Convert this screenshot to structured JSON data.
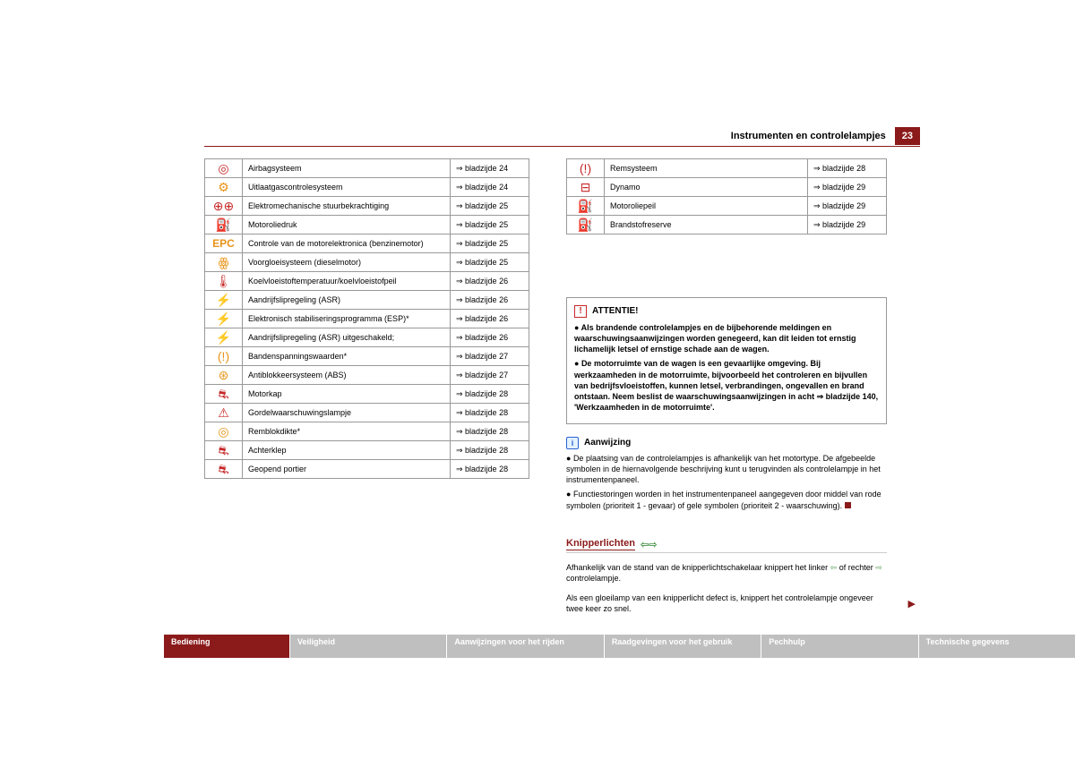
{
  "header": {
    "title": "Instrumenten en controlelampjes",
    "page": "23"
  },
  "leftTable": {
    "rows": [
      {
        "icon": "◎",
        "color": "red",
        "desc": "Airbagsysteem",
        "page": "⇒ bladzijde 24"
      },
      {
        "icon": "⚙",
        "color": "orange",
        "desc": "Uitlaatgascontrolesysteem",
        "page": "⇒ bladzijde 24"
      },
      {
        "icon": "⊕⊕",
        "color": "red",
        "desc": "Elektromechanische stuurbekrachtiging",
        "page": "⇒ bladzijde 25"
      },
      {
        "icon": "⛽",
        "color": "red",
        "desc": "Motoroliedruk",
        "page": "⇒ bladzijde 25"
      },
      {
        "icon": "EPC",
        "color": "orange",
        "epc": true,
        "desc": "Controle van de motorelektronica (benzinemotor)",
        "page": "⇒ bladzijde 25"
      },
      {
        "icon": "ꙮ",
        "color": "orange",
        "desc": "Voorgloeisysteem (dieselmotor)",
        "page": "⇒ bladzijde 25"
      },
      {
        "icon": "🌡",
        "color": "red",
        "desc": "Koelvloeistoftemperatuur/koelvloeistofpeil",
        "page": "⇒ bladzijde 26"
      },
      {
        "icon": "⚡",
        "color": "orange",
        "desc": "Aandrijfslipregeling (ASR)",
        "page": "⇒ bladzijde 26"
      },
      {
        "icon": "⚡",
        "color": "orange",
        "desc": "Elektronisch stabiliseringsprogramma (ESP)*",
        "page": "⇒ bladzijde 26"
      },
      {
        "icon": "⚡",
        "color": "orange",
        "desc": "Aandrijfslipregeling (ASR) uitgeschakeld;",
        "page": "⇒ bladzijde 26"
      },
      {
        "icon": "(!)",
        "color": "orange",
        "desc": "Bandenspanningswaarden*",
        "page": "⇒ bladzijde 27"
      },
      {
        "icon": "⊛",
        "color": "orange",
        "desc": "Antiblokkeersysteem (ABS)",
        "page": "⇒ bladzijde 27"
      },
      {
        "icon": "⛐",
        "color": "red",
        "desc": "Motorkap",
        "page": "⇒ bladzijde 28"
      },
      {
        "icon": "⚠",
        "color": "red",
        "desc": "Gordelwaarschuwingslampje",
        "page": "⇒ bladzijde 28"
      },
      {
        "icon": "◎",
        "color": "orange",
        "desc": "Remblokdikte*",
        "page": "⇒ bladzijde 28"
      },
      {
        "icon": "⛐",
        "color": "red",
        "desc": "Achterklep",
        "page": "⇒ bladzijde 28"
      },
      {
        "icon": "⛐",
        "color": "red",
        "desc": "Geopend portier",
        "page": "⇒ bladzijde 28"
      }
    ]
  },
  "rightTable": {
    "rows": [
      {
        "icon": "(!)",
        "color": "red",
        "desc": "Remsysteem",
        "page": "⇒ bladzijde 28"
      },
      {
        "icon": "⊟",
        "color": "red",
        "desc": "Dynamo",
        "page": "⇒ bladzijde 29"
      },
      {
        "icon": "⛽",
        "color": "orange",
        "desc": "Motoroliepeil",
        "page": "⇒ bladzijde 29"
      },
      {
        "icon": "⛽",
        "color": "orange",
        "desc": "Brandstofreserve",
        "page": "⇒ bladzijde 29"
      }
    ]
  },
  "attention": {
    "title": "ATTENTIE!",
    "items": [
      "Als brandende controlelampjes en de bijbehorende meldingen en waarschuwingsaanwijzingen worden genegeerd, kan dit leiden tot ernstig lichamelijk letsel of ernstige schade aan de wagen.",
      "De motorruimte van de wagen is een gevaarlijke omgeving. Bij werkzaamheden in de motorruimte, bijvoorbeeld het controleren en bijvullen van bedrijfsvloeistoffen, kunnen letsel, verbrandingen, ongevallen en brand ontstaan. Neem beslist de waarschuwingsaanwijzingen in acht ⇒ bladzijde 140, 'Werkzaamheden in de motorruimte'."
    ]
  },
  "info": {
    "title": "Aanwijzing",
    "items": [
      "De plaatsing van de controlelampjes is afhankelijk van het motortype. De afgebeelde symbolen in de hiernavolgende beschrijving kunt u terugvinden als controlelampje in het instrumentenpaneel.",
      "Functiestoringen worden in het instrumentenpaneel aangegeven door middel van rode symbolen (prioriteit 1 - gevaar) of gele symbolen (prioriteit 2 - waarschuwing)."
    ]
  },
  "section": {
    "heading": "Knipperlichten",
    "para1_a": "Afhankelijk van de stand van de knipperlichtschakelaar knippert het linker ",
    "para1_b": " of rechter ",
    "para1_c": " controlelampje.",
    "para2": "Als een gloeilamp van een knipperlicht defect is, knippert het controlelampje ongeveer twee keer zo snel."
  },
  "tabs": {
    "t1": "Bediening",
    "t2": "Veiligheid",
    "t3": "Aanwijzingen voor het rijden",
    "t4": "Raadgevingen voor het gebruik",
    "t5": "Pechhulp",
    "t6": "Technische gegevens"
  }
}
